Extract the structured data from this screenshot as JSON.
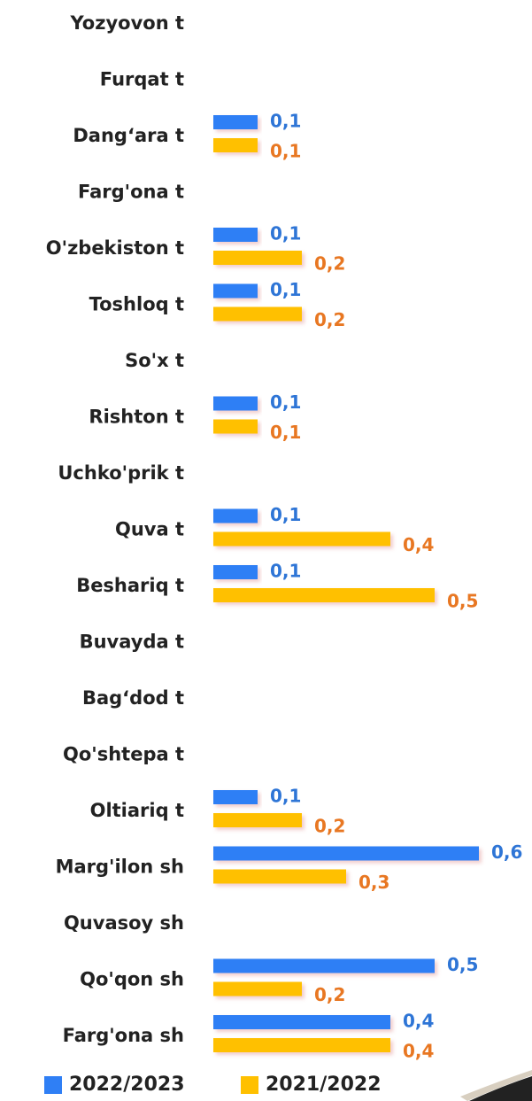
{
  "chart_data": {
    "type": "hbar",
    "categories": [
      "Yozyovon t",
      "Furqat t",
      "Dang‘ara t",
      "Farg'ona t",
      "O'zbekiston t",
      "Toshloq t",
      "So'x t",
      "Rishton t",
      "Uchko'prik t",
      "Quva t",
      "Beshariq t",
      "Buvayda t",
      "Bag‘dod t",
      "Qo'shtepa t",
      "Oltiariq t",
      "Marg'ilon sh",
      "Quvasoy sh",
      "Qo'qon sh",
      "Farg'ona sh"
    ],
    "series": [
      {
        "name": "2022/2023",
        "color": "#2f7ff5",
        "label_color": "#2e75d6",
        "values": [
          null,
          null,
          0.1,
          null,
          0.1,
          0.1,
          null,
          0.1,
          null,
          0.1,
          0.1,
          null,
          null,
          null,
          0.1,
          0.6,
          null,
          0.5,
          0.4
        ],
        "value_labels": [
          null,
          null,
          "0,1",
          null,
          "0,1",
          "0,1",
          null,
          "0,1",
          null,
          "0,1",
          "0,1",
          null,
          null,
          null,
          "0,1",
          "0,6",
          null,
          "0,5",
          "0,4"
        ]
      },
      {
        "name": "2021/2022",
        "color": "#ffc000",
        "label_color": "#e87722",
        "values": [
          null,
          null,
          0.1,
          null,
          0.2,
          0.2,
          null,
          0.1,
          null,
          0.4,
          0.5,
          null,
          null,
          null,
          0.2,
          0.3,
          null,
          0.2,
          0.4
        ],
        "value_labels": [
          null,
          null,
          "0,1",
          null,
          "0,2",
          "0,2",
          null,
          "0,1",
          null,
          "0,4",
          "0,5",
          null,
          null,
          null,
          "0,2",
          "0,3",
          null,
          "0,2",
          "0,4"
        ]
      }
    ],
    "xlim": [
      0,
      0.7
    ]
  }
}
